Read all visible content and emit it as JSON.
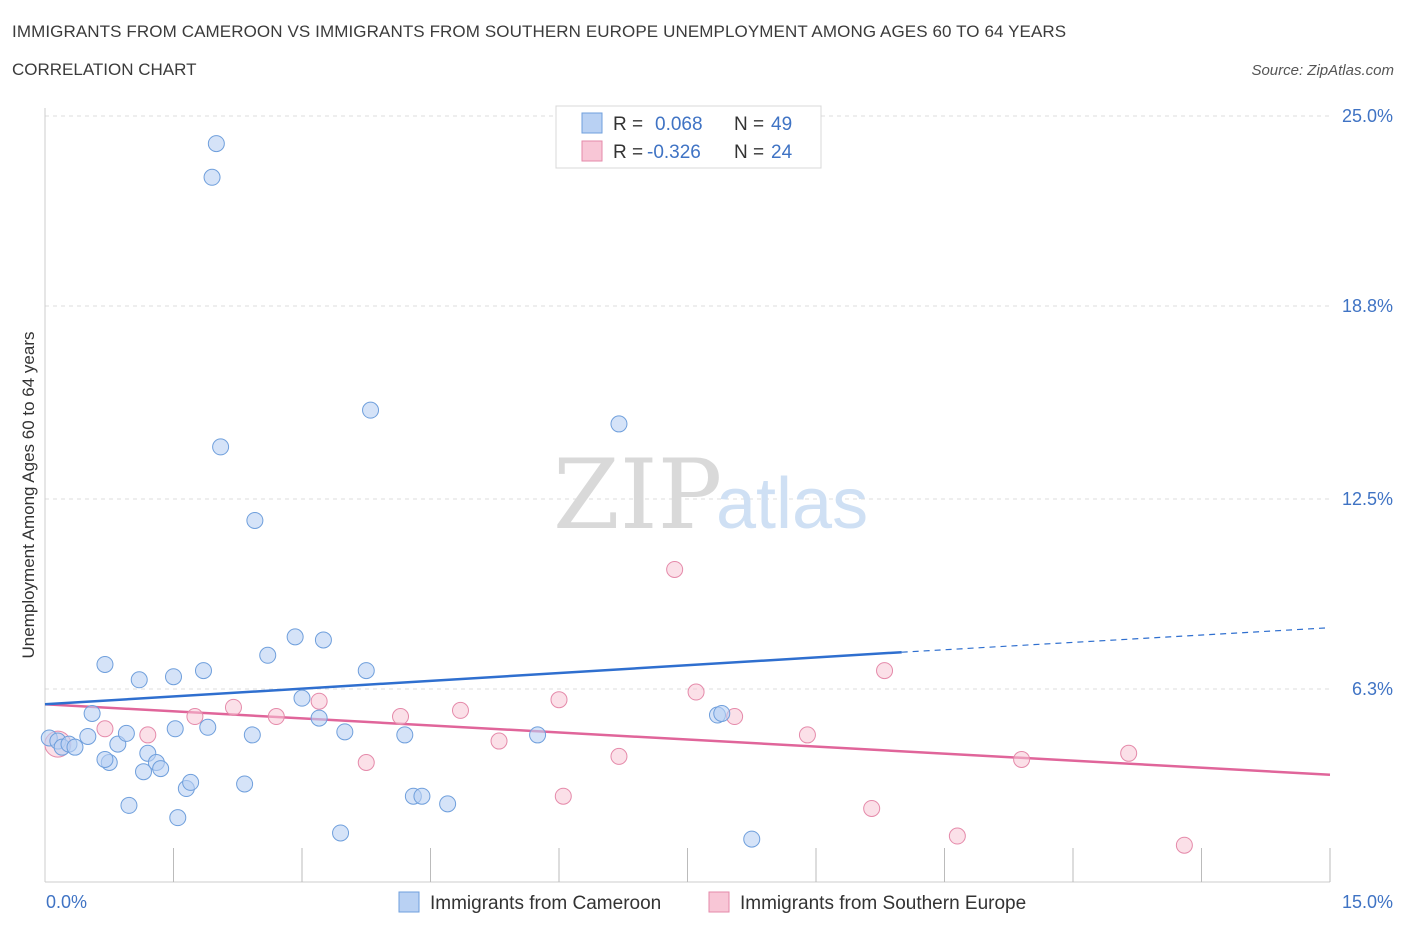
{
  "header": {
    "title": "IMMIGRANTS FROM CAMEROON VS IMMIGRANTS FROM SOUTHERN EUROPE UNEMPLOYMENT AMONG AGES 60 TO 64 YEARS",
    "subtitle": "CORRELATION CHART",
    "source": "Source: ZipAtlas.com"
  },
  "watermark": {
    "zip": "ZIP",
    "atlas": "atlas"
  },
  "legend": {
    "rows": [
      {
        "r_label": "R =",
        "r_value": "0.068",
        "n_label": "N =",
        "n_value": "49"
      },
      {
        "r_label": "R =",
        "r_value": "-0.326",
        "n_label": "N =",
        "n_value": "24"
      }
    ]
  },
  "chart_data": {
    "type": "scatter",
    "title": "IMMIGRANTS FROM CAMEROON VS IMMIGRANTS FROM SOUTHERN EUROPE UNEMPLOYMENT AMONG AGES 60 TO 64 YEARS",
    "subtitle": "CORRELATION CHART",
    "xlabel": "",
    "ylabel": "Unemployment Among Ages 60 to 64 years",
    "xlim": [
      0,
      15
    ],
    "ylim": [
      0,
      25
    ],
    "x_tick_labels": [
      "0.0%",
      "15.0%"
    ],
    "y_ticks": [
      6.3,
      12.5,
      18.8,
      25.0
    ],
    "y_tick_labels": [
      "6.3%",
      "12.5%",
      "18.8%",
      "25.0%"
    ],
    "grid": true,
    "legend_position": "top-center",
    "colors": {
      "cameroon_fill": "#b9d1f3",
      "cameroon_stroke": "#6f9fdc",
      "cameroon_line": "#2f6fcf",
      "southern_europe_fill": "#f8c6d6",
      "southern_europe_stroke": "#e58aaa",
      "southern_europe_line": "#e0659a"
    },
    "series": [
      {
        "name": "Immigrants from Cameroon",
        "r": 0.068,
        "n": 49,
        "trend": {
          "x0": 0.0,
          "y0": 5.8,
          "x1": 10.0,
          "y1": 7.5,
          "x_ext": 15.0,
          "y_ext": 8.3
        },
        "points": [
          [
            0.05,
            4.7
          ],
          [
            0.15,
            4.6
          ],
          [
            0.2,
            4.4
          ],
          [
            0.28,
            4.5
          ],
          [
            0.35,
            4.4
          ],
          [
            0.5,
            4.75
          ],
          [
            0.55,
            5.5
          ],
          [
            0.7,
            7.1
          ],
          [
            0.85,
            4.5
          ],
          [
            0.95,
            4.85
          ],
          [
            0.75,
            3.9
          ],
          [
            0.7,
            4.0
          ],
          [
            0.98,
            2.5
          ],
          [
            1.1,
            6.6
          ],
          [
            1.15,
            3.6
          ],
          [
            1.2,
            4.2
          ],
          [
            1.3,
            3.9
          ],
          [
            1.35,
            3.7
          ],
          [
            1.5,
            6.7
          ],
          [
            1.52,
            5.0
          ],
          [
            1.55,
            2.1
          ],
          [
            1.65,
            3.05
          ],
          [
            1.7,
            3.25
          ],
          [
            1.85,
            6.9
          ],
          [
            1.9,
            5.05
          ],
          [
            1.95,
            23.0
          ],
          [
            2.0,
            24.1
          ],
          [
            2.05,
            14.2
          ],
          [
            2.33,
            3.2
          ],
          [
            2.42,
            4.8
          ],
          [
            2.45,
            11.8
          ],
          [
            2.6,
            7.4
          ],
          [
            2.92,
            8.0
          ],
          [
            3.0,
            6.0
          ],
          [
            3.2,
            5.35
          ],
          [
            3.25,
            7.9
          ],
          [
            3.45,
            1.6
          ],
          [
            3.5,
            4.9
          ],
          [
            3.75,
            6.9
          ],
          [
            3.8,
            15.4
          ],
          [
            4.2,
            4.8
          ],
          [
            4.3,
            2.8
          ],
          [
            4.4,
            2.8
          ],
          [
            4.7,
            2.55
          ],
          [
            5.75,
            4.8
          ],
          [
            6.7,
            14.95
          ],
          [
            7.85,
            5.45
          ],
          [
            8.25,
            1.4
          ],
          [
            7.9,
            5.5
          ]
        ]
      },
      {
        "name": "Immigrants from Southern Europe",
        "r": -0.326,
        "n": 24,
        "trend": {
          "x0": 0.0,
          "y0": 5.8,
          "x1": 15.0,
          "y1": 3.5
        },
        "points": [
          [
            0.15,
            4.5
          ],
          [
            0.7,
            5.0
          ],
          [
            1.2,
            4.8
          ],
          [
            1.75,
            5.4
          ],
          [
            2.2,
            5.7
          ],
          [
            2.7,
            5.4
          ],
          [
            3.2,
            5.9
          ],
          [
            3.75,
            3.9
          ],
          [
            4.15,
            5.4
          ],
          [
            4.85,
            5.6
          ],
          [
            5.3,
            4.6
          ],
          [
            6.0,
            5.95
          ],
          [
            6.05,
            2.8
          ],
          [
            6.7,
            4.1
          ],
          [
            7.35,
            10.2
          ],
          [
            7.6,
            6.2
          ],
          [
            8.05,
            5.4
          ],
          [
            8.9,
            4.8
          ],
          [
            9.65,
            2.4
          ],
          [
            9.8,
            6.9
          ],
          [
            10.65,
            1.5
          ],
          [
            11.4,
            4.0
          ],
          [
            12.65,
            4.2
          ],
          [
            13.3,
            1.2
          ]
        ]
      }
    ]
  },
  "bottom_legend": {
    "items": [
      {
        "label": "Immigrants from Cameroon"
      },
      {
        "label": "Immigrants from Southern Europe"
      }
    ]
  }
}
